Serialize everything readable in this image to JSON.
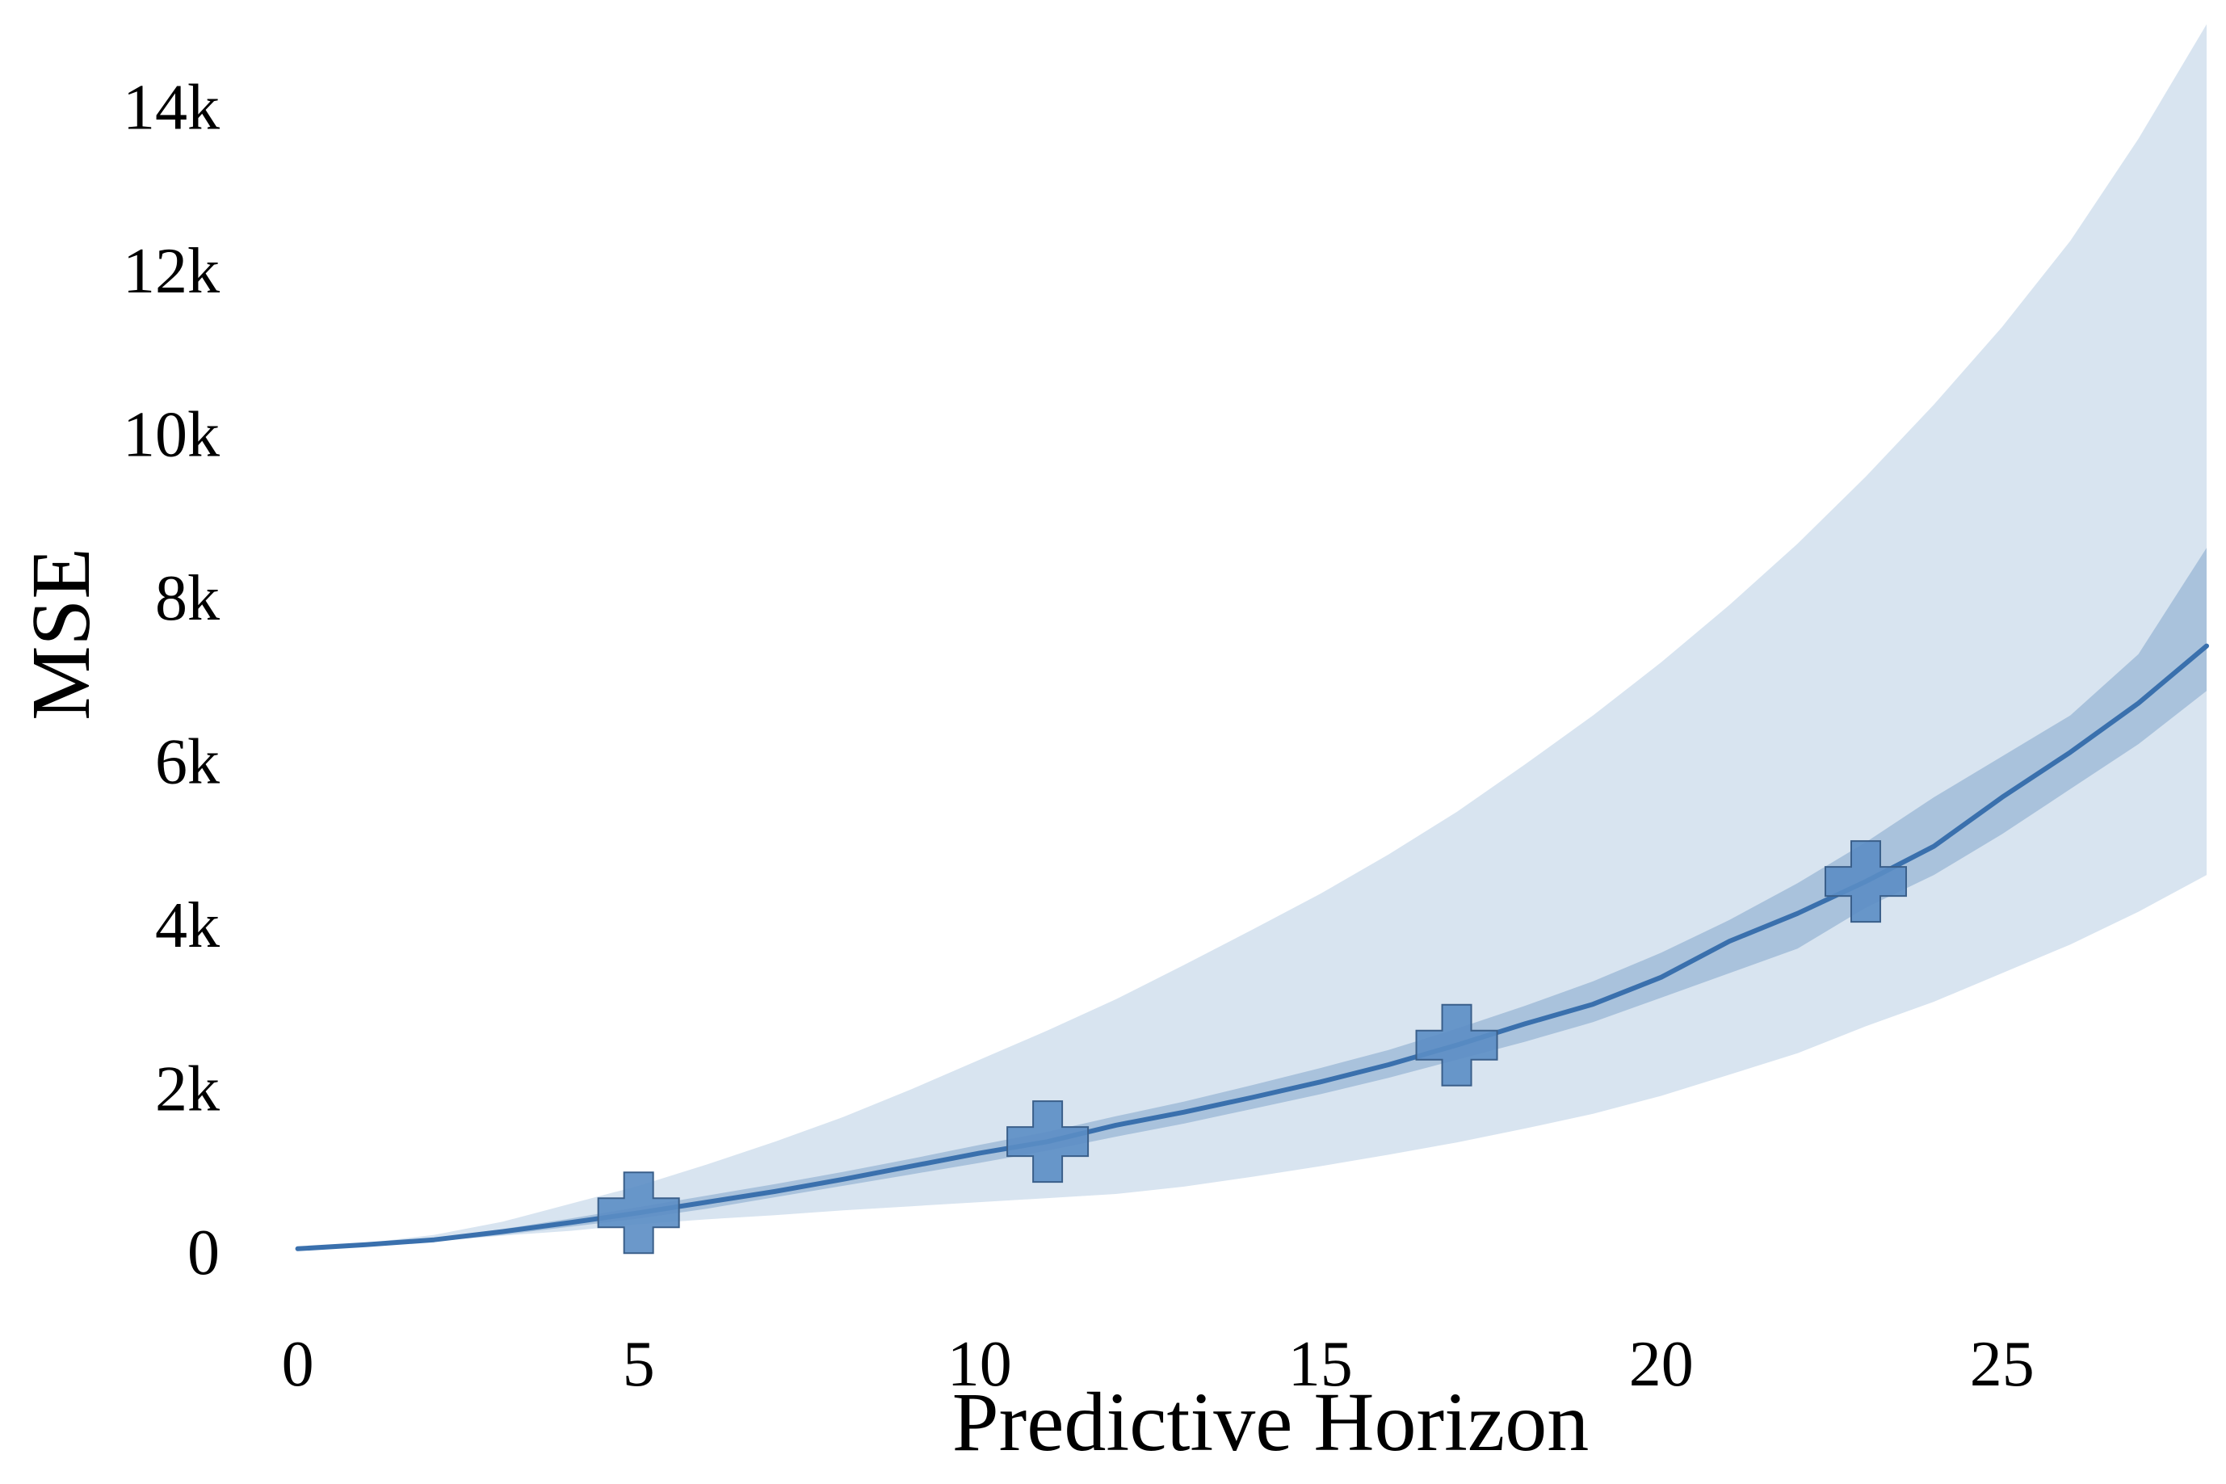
{
  "chart_data": {
    "type": "line",
    "title": "",
    "xlabel": "Predictive Horizon",
    "ylabel": "MSE",
    "xlim": [
      -0.6,
      28
    ],
    "ylim": [
      -900,
      15000
    ],
    "x_ticks": [
      0,
      5,
      10,
      15,
      20,
      25
    ],
    "x_tick_labels": [
      "0",
      "5",
      "10",
      "15",
      "20",
      "25"
    ],
    "y_ticks": [
      0,
      2000,
      4000,
      6000,
      8000,
      10000,
      12000,
      14000
    ],
    "y_tick_labels": [
      "0",
      "2k",
      "4k",
      "6k",
      "8k",
      "10k",
      "12k",
      "14k"
    ],
    "grid": false,
    "legend": "none",
    "colors": {
      "line": "#3a70ad",
      "inner_band": "#a9c2dc",
      "outer_band": "#d8e4f0",
      "marker_fill": "#5b8dc4",
      "marker_edge": "#3a5f8a"
    },
    "x": [
      0,
      1,
      2,
      3,
      4,
      5,
      6,
      7,
      8,
      9,
      10,
      11,
      12,
      13,
      14,
      15,
      16,
      17,
      18,
      19,
      20,
      21,
      22,
      23,
      24,
      25,
      26,
      27,
      28
    ],
    "series": [
      {
        "values": [
          30,
          80,
          140,
          240,
          350,
          470,
          600,
          730,
          880,
          1040,
          1200,
          1340,
          1540,
          1700,
          1880,
          2070,
          2280,
          2520,
          2780,
          3020,
          3350,
          3790,
          4130,
          4520,
          4950,
          5550,
          6100,
          6700,
          7400
        ],
        "inner_band": {
          "lower": [
            30,
            70,
            120,
            200,
            300,
            400,
            520,
            660,
            800,
            940,
            1080,
            1230,
            1400,
            1560,
            1740,
            1920,
            2120,
            2340,
            2560,
            2800,
            3100,
            3400,
            3700,
            4200,
            4600,
            5100,
            5650,
            6200,
            6850
          ],
          "upper": [
            30,
            90,
            160,
            270,
            400,
            540,
            680,
            820,
            970,
            1130,
            1300,
            1460,
            1650,
            1830,
            2030,
            2240,
            2460,
            2720,
            3000,
            3300,
            3650,
            4050,
            4500,
            5000,
            5550,
            6050,
            6550,
            7300,
            8600
          ]
        },
        "outer_band": {
          "lower": [
            30,
            60,
            120,
            190,
            250,
            330,
            390,
            440,
            500,
            550,
            600,
            650,
            700,
            790,
            910,
            1040,
            1180,
            1330,
            1500,
            1680,
            1900,
            2160,
            2420,
            2750,
            3050,
            3400,
            3750,
            4150,
            4600
          ],
          "upper": [
            30,
            100,
            200,
            360,
            580,
            800,
            1060,
            1340,
            1640,
            1980,
            2340,
            2700,
            3080,
            3500,
            3930,
            4370,
            4850,
            5370,
            5950,
            6550,
            7200,
            7900,
            8650,
            9470,
            10350,
            11300,
            12350,
            13600,
            15000
          ]
        },
        "markers": {
          "shape": "plus",
          "x": [
            5,
            11,
            17,
            23
          ],
          "y": [
            470,
            1340,
            2520,
            4520
          ]
        }
      }
    ]
  }
}
